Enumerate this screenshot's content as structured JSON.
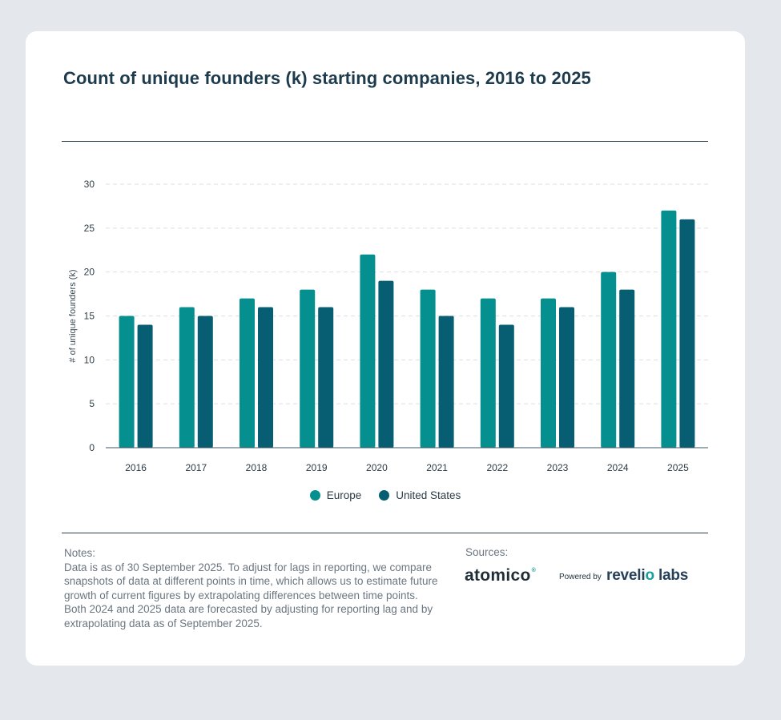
{
  "title": "Count of unique founders (k) starting companies, 2016 to 2025",
  "chart_data": {
    "type": "bar",
    "categories": [
      "2016",
      "2017",
      "2018",
      "2019",
      "2020",
      "2021",
      "2022",
      "2023",
      "2024",
      "2025"
    ],
    "series": [
      {
        "name": "Europe",
        "color": "#05908f",
        "values": [
          15,
          16,
          17,
          18,
          22,
          18,
          17,
          17,
          20,
          27
        ]
      },
      {
        "name": "United States",
        "color": "#075d71",
        "values": [
          14,
          15,
          16,
          16,
          19,
          15,
          14,
          16,
          18,
          26
        ]
      }
    ],
    "ylabel": "# of unique founders (k)",
    "xlabel": "",
    "ylim": [
      0,
      30
    ],
    "yticks": [
      "0",
      "5",
      "10",
      "15",
      "20",
      "25",
      "30"
    ],
    "grid": true,
    "legend": "bottom-center"
  },
  "notes": {
    "heading": "Notes:",
    "text": "Data is as of 30 September 2025. To adjust for lags in reporting, we compare snapshots of data at different points in time, which allows us to estimate future growth of current figures by extrapolating differences between time points. Both 2024 and 2025 data are forecasted by adjusting for reporting lag and by extrapolating data as of September 2025."
  },
  "sources": {
    "heading": "Sources:",
    "atomico": "atomico",
    "atomico_mark": "®",
    "powered_by": "Powered by",
    "revelio_a": "reveli",
    "revelio_dot": "o",
    "revelio_b": " labs"
  }
}
